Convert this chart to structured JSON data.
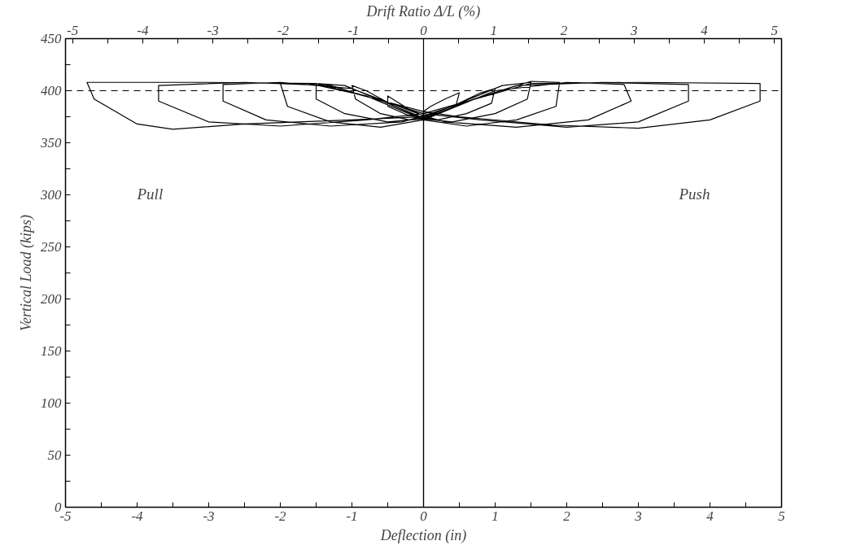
{
  "chart_data": {
    "type": "line",
    "xlabel": "Deflection (in)",
    "ylabel": "Vertical Load (kips)",
    "x2label": "Drift Ratio Δ/L (%)",
    "xlim": [
      -5,
      5
    ],
    "xticks": [
      -5,
      {
        "value": -4.5,
        "label": null
      },
      -4,
      {
        "value": -3.5,
        "label": null
      },
      -3,
      {
        "value": -2.5,
        "label": null
      },
      -2,
      {
        "value": -1.5,
        "label": null
      },
      -1,
      {
        "value": -0.5,
        "label": null
      },
      0,
      {
        "value": 0.5,
        "label": null
      },
      1,
      {
        "value": 1.5,
        "label": null
      },
      2,
      {
        "value": 2.5,
        "label": null
      },
      3,
      {
        "value": 3.5,
        "label": null
      },
      4,
      {
        "value": 4.5,
        "label": null
      },
      5
    ],
    "x2lim": [
      -5.1,
      5.1
    ],
    "x2ticks": [
      -5,
      {
        "value": -4.5,
        "label": null
      },
      -4,
      {
        "value": -3.5,
        "label": null
      },
      -3,
      {
        "value": -2.5,
        "label": null
      },
      -2,
      {
        "value": -1.5,
        "label": null
      },
      -1,
      {
        "value": -0.5,
        "label": null
      },
      0,
      {
        "value": 0.5,
        "label": null
      },
      1,
      {
        "value": 1.5,
        "label": null
      },
      2,
      {
        "value": 2.5,
        "label": null
      },
      3,
      {
        "value": 3.5,
        "label": null
      },
      4,
      {
        "value": 4.5,
        "label": null
      },
      5
    ],
    "ylim": [
      0,
      450
    ],
    "yticks": [
      0,
      {
        "value": 25,
        "label": null
      },
      50,
      {
        "value": 75,
        "label": null
      },
      100,
      {
        "value": 125,
        "label": null
      },
      150,
      {
        "value": 175,
        "label": null
      },
      200,
      {
        "value": 225,
        "label": null
      },
      250,
      {
        "value": 275,
        "label": null
      },
      300,
      {
        "value": 325,
        "label": null
      },
      350,
      {
        "value": 375,
        "label": null
      },
      400,
      {
        "value": 425,
        "label": null
      },
      450
    ],
    "grid": false,
    "marker": "none",
    "line_style": "solid",
    "ref_lines": [
      {
        "axis": "y",
        "value": 400,
        "line_style": "dashed",
        "color": "#000000"
      },
      {
        "axis": "x",
        "value": 0,
        "line_style": "solid",
        "color": "#000000"
      }
    ],
    "annotations": [
      "Pull",
      "Push"
    ],
    "series": [
      {
        "color": "#000000",
        "x": [
          0,
          0,
          0.1,
          0.3,
          0.5,
          0.45,
          0.2,
          0,
          -0.2,
          -0.5,
          -0.5,
          -0.2,
          0,
          0.4,
          0.8,
          1.0,
          0.95,
          0.6,
          0.2,
          0,
          -0.4,
          -0.8,
          -1.0,
          -0.95,
          -0.6,
          -0.2,
          0,
          0.5,
          1.1,
          1.5,
          1.45,
          1.0,
          0.4,
          0,
          -0.5,
          -1.1,
          -1.5,
          -1.5,
          -1.1,
          -0.5,
          0,
          0.7,
          1.5,
          1.9,
          1.85,
          1.3,
          0.6,
          0,
          -0.8,
          -1.6,
          -2.0,
          -1.9,
          -1.3,
          -0.6,
          0,
          1.0,
          2.0,
          2.8,
          2.9,
          2.3,
          1.3,
          0.3,
          0,
          -1.0,
          -2.0,
          -2.8,
          -2.8,
          -2.2,
          -1.3,
          -0.3,
          0,
          1.3,
          2.5,
          3.7,
          3.7,
          3.0,
          2.0,
          0.8,
          0,
          -1.3,
          -2.5,
          -3.7,
          -3.7,
          -3.0,
          -2.0,
          -0.8,
          0,
          1.5,
          3.0,
          4.7,
          4.7,
          4.0,
          3.0,
          1.8,
          0.5,
          0,
          -1.5,
          -3.0,
          -4.7,
          -4.6,
          -4.0,
          -3.5,
          -2.5,
          -1,
          0
        ],
        "values": [
          0,
          380,
          385,
          392,
          398,
          385,
          378,
          376,
          382,
          395,
          385,
          376,
          375,
          385,
          398,
          402,
          388,
          378,
          372,
          374,
          385,
          400,
          405,
          392,
          378,
          372,
          374,
          388,
          405,
          408,
          392,
          378,
          370,
          373,
          388,
          405,
          407,
          392,
          378,
          370,
          373,
          392,
          409,
          408,
          385,
          372,
          366,
          372,
          395,
          407,
          407,
          385,
          370,
          365,
          372,
          400,
          408,
          406,
          390,
          372,
          365,
          370,
          376,
          402,
          408,
          406,
          390,
          372,
          366,
          370,
          376,
          405,
          408,
          406,
          390,
          370,
          365,
          372,
          378,
          405,
          408,
          405,
          390,
          370,
          366,
          372,
          378,
          407,
          408,
          407,
          390,
          372,
          364,
          367,
          375,
          380,
          407,
          408,
          408,
          392,
          368,
          363,
          368,
          372,
          375
        ]
      }
    ]
  }
}
